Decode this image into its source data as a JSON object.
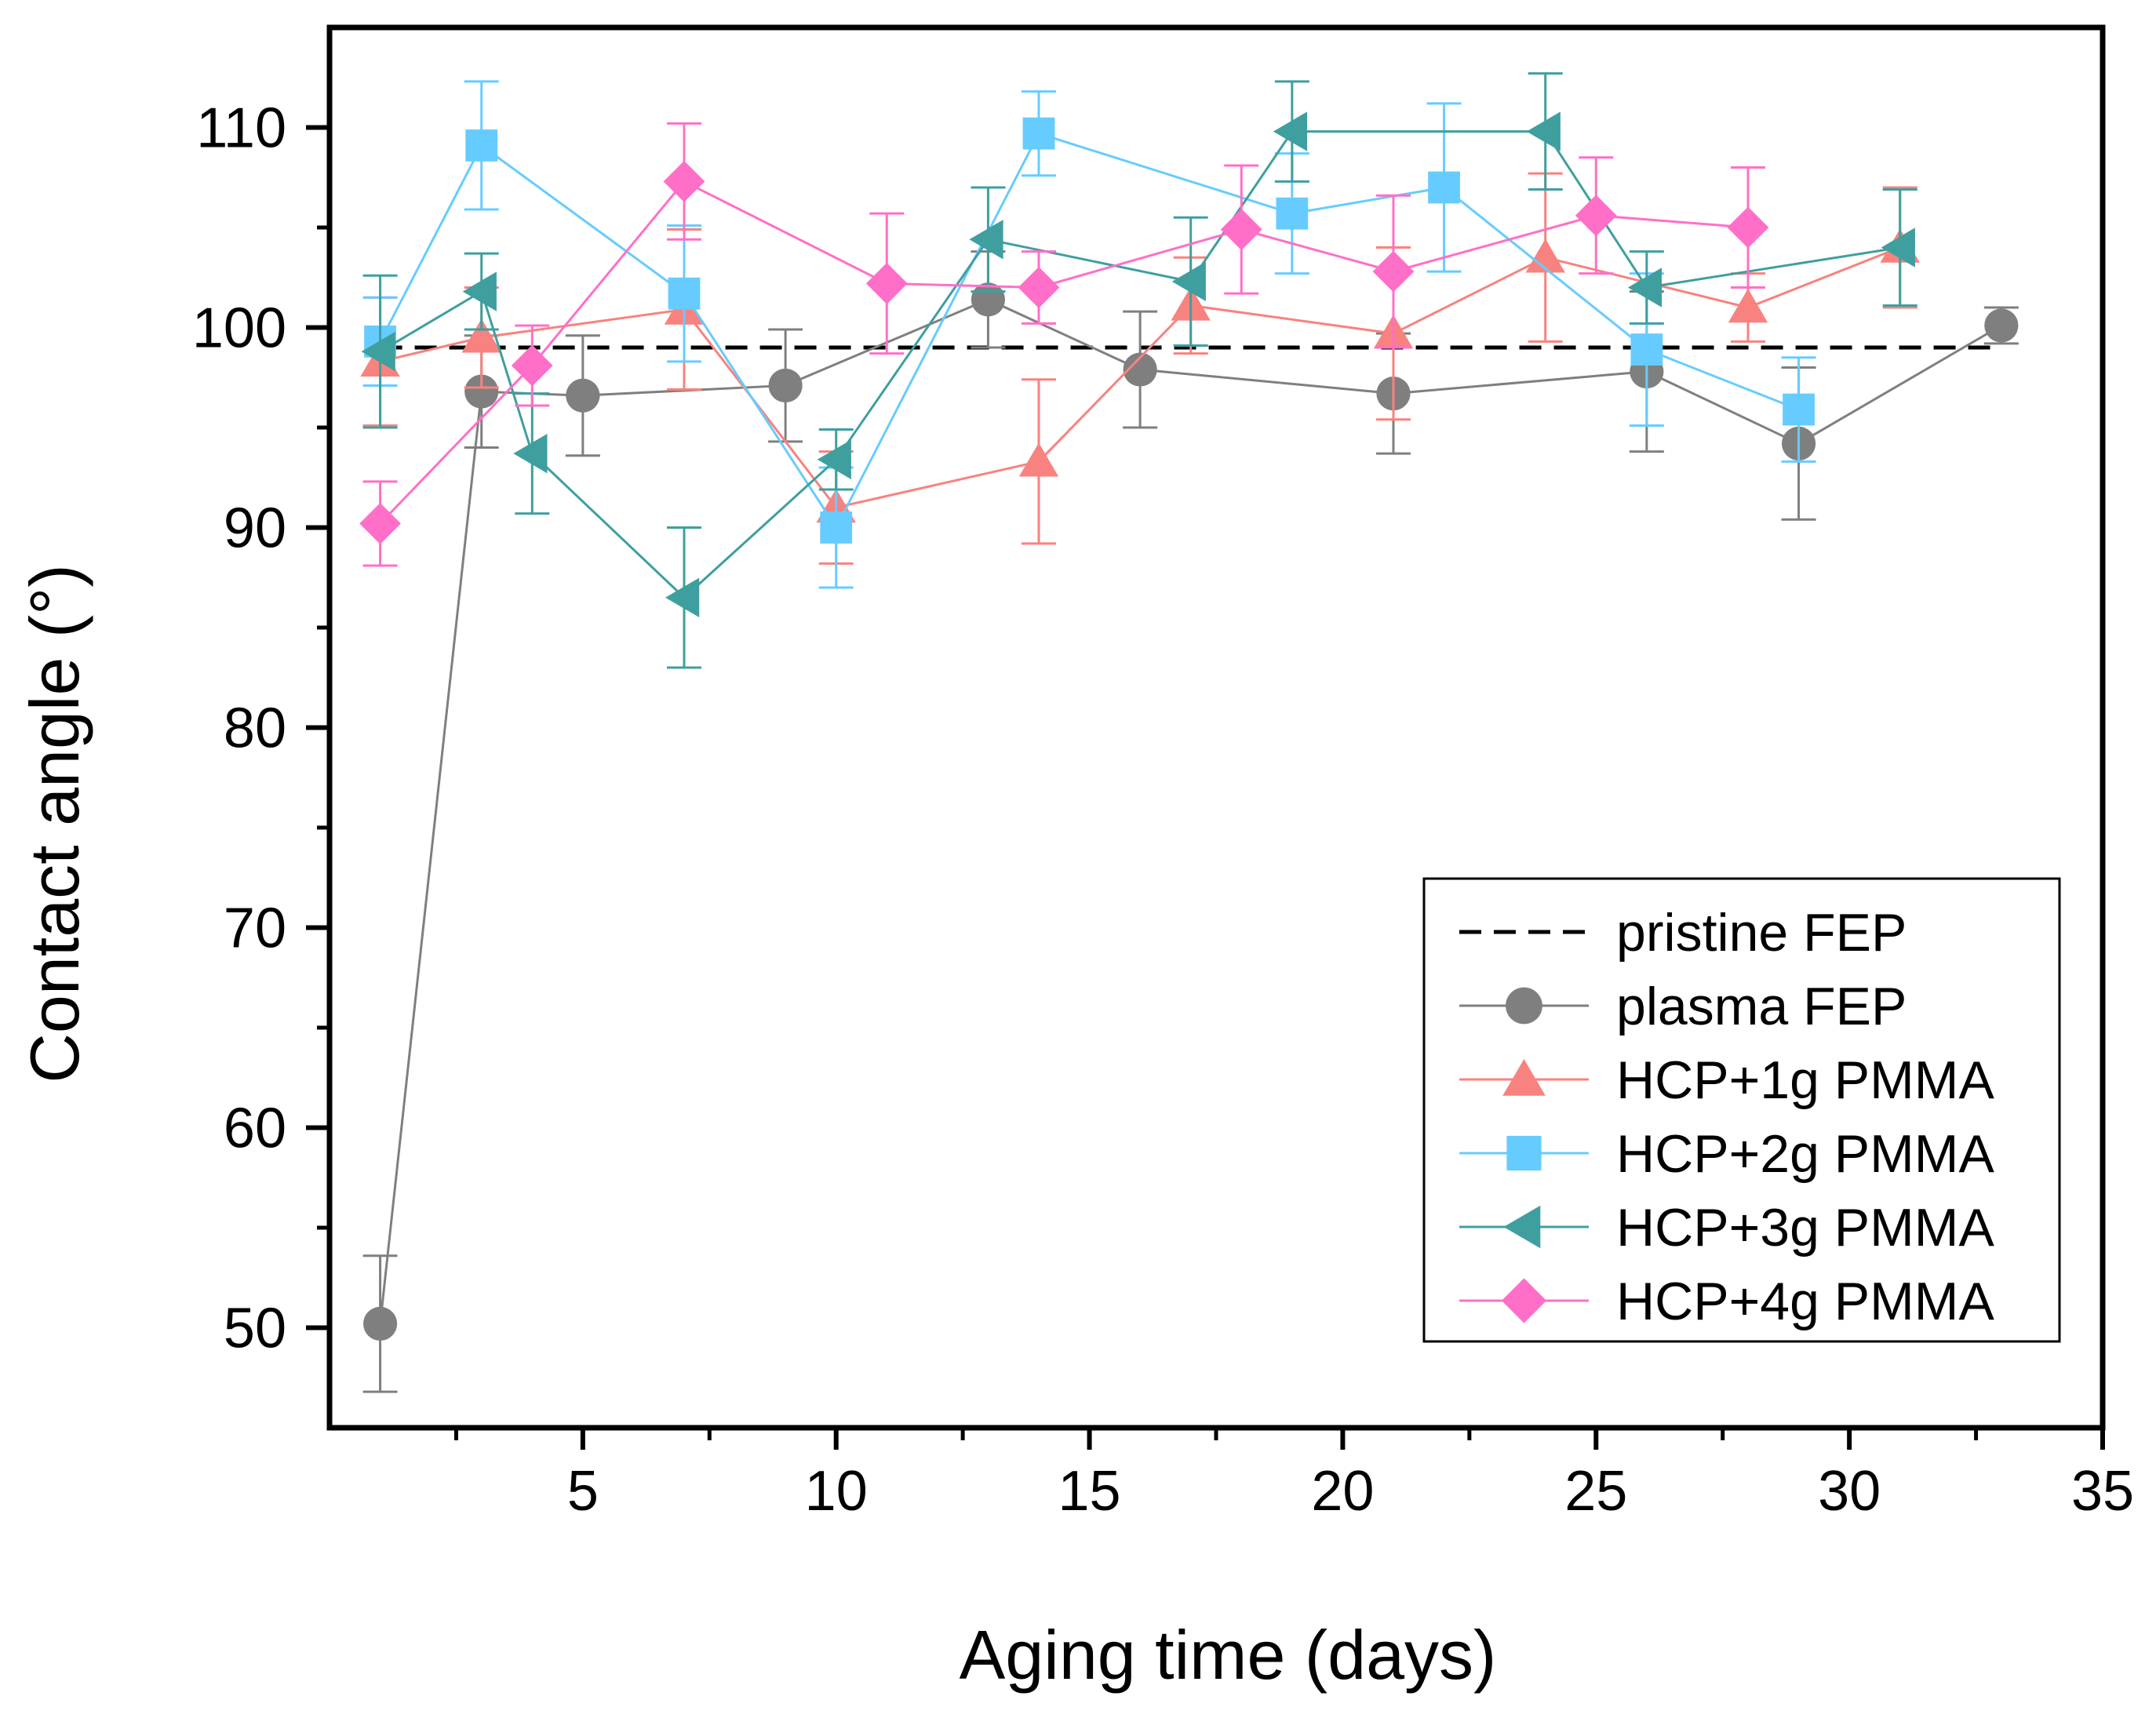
{
  "chart_data": {
    "type": "line",
    "title": "",
    "xlabel": "Aging time (days)",
    "ylabel": "Contact angle (°)",
    "xlim": [
      0,
      35
    ],
    "ylim": [
      45,
      115
    ],
    "xticks": [
      5,
      10,
      15,
      20,
      25,
      30,
      35
    ],
    "xtick_labels": [
      "5",
      "10",
      "15",
      "20",
      "25",
      "30",
      "35"
    ],
    "yticks": [
      50,
      60,
      70,
      80,
      90,
      100,
      110
    ],
    "ytick_labels": [
      "50",
      "60",
      "70",
      "80",
      "90",
      "100",
      "110"
    ],
    "grid": false,
    "legend_position": "bottom-right",
    "reference_line": {
      "name": "pristine FEP",
      "y": 99,
      "color": "#000000",
      "style": "dashed"
    },
    "series": [
      {
        "name": "plasma FEP",
        "color": "#7f7f7f",
        "marker": "circle",
        "x": [
          1,
          3,
          5,
          9,
          13,
          16,
          21,
          26,
          29,
          33
        ],
        "y": [
          50.2,
          96.8,
          96.6,
          97.1,
          101.4,
          97.9,
          96.7,
          97.8,
          94.2,
          100.1
        ],
        "err": [
          3.4,
          2.8,
          3.0,
          2.8,
          2.4,
          2.9,
          3.0,
          4.0,
          3.8,
          0.9
        ]
      },
      {
        "name": "HCP+1g PMMA",
        "color": "#f8827f",
        "marker": "triangle-up",
        "x": [
          1,
          3,
          7,
          10,
          14,
          17,
          21,
          24,
          28,
          31
        ],
        "y": [
          98.3,
          99.5,
          100.9,
          91.0,
          93.3,
          101.1,
          99.7,
          103.5,
          101.0,
          104.0
        ],
        "err": [
          3.2,
          2.5,
          4.0,
          2.8,
          4.1,
          2.4,
          4.3,
          4.2,
          1.7,
          3.0
        ]
      },
      {
        "name": "HCP+2g PMMA",
        "color": "#66ccff",
        "marker": "square",
        "x": [
          1,
          3,
          7,
          10,
          14,
          19,
          22,
          26,
          29
        ],
        "y": [
          99.3,
          109.1,
          101.7,
          90.0,
          109.7,
          105.7,
          107.0,
          98.9,
          95.9
        ],
        "err": [
          2.2,
          3.2,
          3.4,
          3.0,
          2.1,
          3.0,
          4.2,
          3.8,
          2.6
        ]
      },
      {
        "name": "HCP+3g PMMA",
        "color": "#3f9f9f",
        "marker": "triangle-left",
        "x": [
          1,
          3,
          4,
          7,
          10,
          13,
          17,
          19,
          24,
          26,
          31
        ],
        "y": [
          98.8,
          101.8,
          93.7,
          86.5,
          93.4,
          104.4,
          102.3,
          109.8,
          109.8,
          102.0,
          104.0
        ],
        "err": [
          3.8,
          1.9,
          3.0,
          3.5,
          1.5,
          2.6,
          3.2,
          2.5,
          2.9,
          1.8,
          2.9
        ]
      },
      {
        "name": "HCP+4g PMMA",
        "color": "#ff6fc8",
        "marker": "diamond",
        "x": [
          1,
          4,
          7,
          11,
          14,
          18,
          21,
          25,
          28
        ],
        "y": [
          90.2,
          98.1,
          107.3,
          102.2,
          102.0,
          104.9,
          102.8,
          105.6,
          105.0
        ],
        "err": [
          2.1,
          2.0,
          2.9,
          3.5,
          1.8,
          3.2,
          3.8,
          2.9,
          3.0
        ]
      }
    ]
  }
}
